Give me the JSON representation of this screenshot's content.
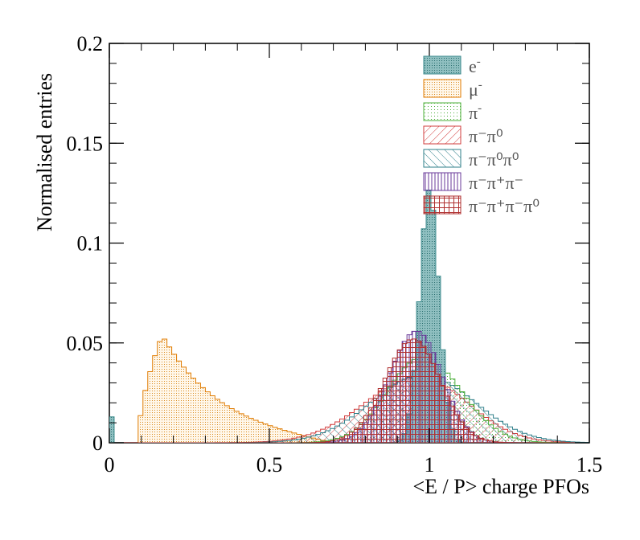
{
  "chart_data": {
    "type": "histogram",
    "xlabel": "<E / P> charge PFOs",
    "ylabel": "Normalised entries",
    "xlim": [
      0,
      1.5
    ],
    "ylim": [
      0,
      0.2
    ],
    "x_ticks": [
      0,
      0.5,
      1,
      1.5
    ],
    "x_tick_labels": [
      "0",
      "0.5",
      "1",
      "1.5"
    ],
    "y_ticks": [
      0,
      0.05,
      0.1,
      0.15,
      0.2
    ],
    "y_tick_labels": [
      "0",
      "0.05",
      "0.1",
      "0.15",
      "0.2"
    ],
    "bin_width": 0.015,
    "legend_position": "top-right",
    "legend": [
      {
        "label": "e",
        "sup": "-",
        "pattern": "e-dots",
        "color": "#3a8a8c"
      },
      {
        "label": "μ",
        "sup": "-",
        "pattern": "mu-dots",
        "color": "#e07b00"
      },
      {
        "label": "π",
        "sup": "-",
        "pattern": "pi-dots",
        "color": "#4caf3a"
      },
      {
        "label": "π⁻π⁰",
        "sup": "",
        "pattern": "pipi0-hatch",
        "color": "#d23c3c"
      },
      {
        "label": "π⁻π⁰π⁰",
        "sup": "",
        "pattern": "pipi0pi0-hatch",
        "color": "#2f7f8a"
      },
      {
        "label": "π⁻π⁺π⁻",
        "sup": "",
        "pattern": "threepi-vlines",
        "color": "#6a3a9a"
      },
      {
        "label": "π⁻π⁺π⁻π⁰",
        "sup": "",
        "pattern": "threepipi0-grid",
        "color": "#b03030"
      }
    ],
    "series": [
      {
        "name": "e-",
        "shape": "peak",
        "peak_x": 1.0,
        "peak_y": 0.127,
        "sigma_left": 0.03,
        "sigma_right": 0.03,
        "start_x": 0.8,
        "end_x": 1.2,
        "spike_at_zero": 0.013
      },
      {
        "name": "mu-",
        "shape": "landau",
        "onset_x": 0.09,
        "peak_x": 0.165,
        "peak_y": 0.054,
        "tail_end_x": 0.7,
        "tail_decay": 0.19
      },
      {
        "name": "pi-",
        "shape": "peak",
        "peak_x": 0.98,
        "peak_y": 0.043,
        "sigma_left": 0.11,
        "sigma_right": 0.12,
        "start_x": 0.3,
        "end_x": 1.5
      },
      {
        "name": "pi-pi0",
        "shape": "peak",
        "peak_x": 0.97,
        "peak_y": 0.033,
        "sigma_left": 0.17,
        "sigma_right": 0.15,
        "start_x": 0.05,
        "end_x": 1.5
      },
      {
        "name": "pi-pi0pi0",
        "shape": "peak",
        "peak_x": 0.98,
        "peak_y": 0.034,
        "sigma_left": 0.16,
        "sigma_right": 0.16,
        "start_x": 0.05,
        "end_x": 1.5
      },
      {
        "name": "pi-pi+pi-",
        "shape": "peak",
        "peak_x": 0.96,
        "peak_y": 0.056,
        "sigma_left": 0.085,
        "sigma_right": 0.08,
        "start_x": 0.35,
        "end_x": 1.4
      },
      {
        "name": "pi-pi+pi-pi0",
        "shape": "peak",
        "peak_x": 0.95,
        "peak_y": 0.052,
        "sigma_left": 0.09,
        "sigma_right": 0.085,
        "start_x": 0.35,
        "end_x": 1.4
      }
    ]
  }
}
